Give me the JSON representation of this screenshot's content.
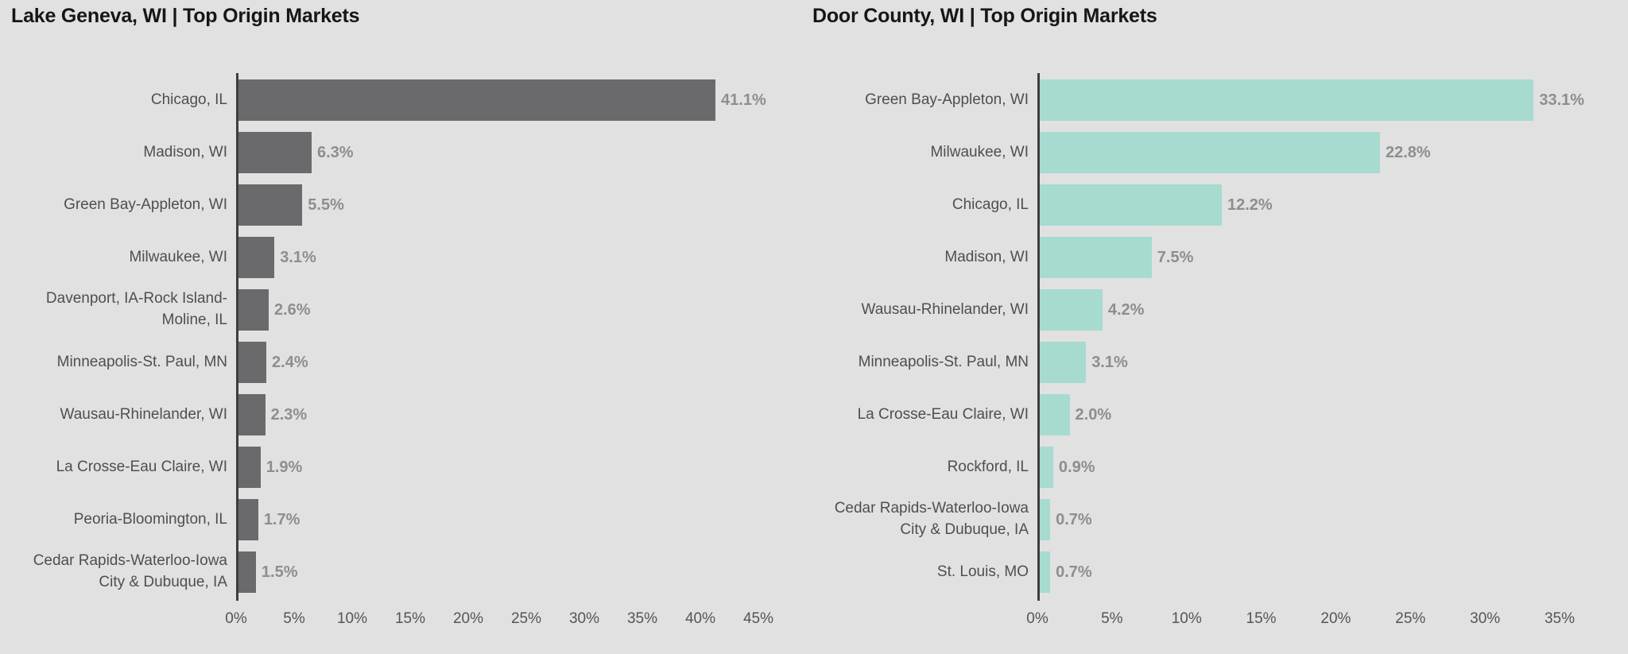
{
  "page": {
    "background": "#e1e1e1"
  },
  "colors": {
    "background": "#e1e1e1",
    "bar_dark_gray": "#6a696b",
    "bar_teal": "#a7dbd0",
    "title_text": "#161616",
    "category_text": "#4f4e52",
    "value_text": "#8e8d90",
    "tick_text": "#555458",
    "axis_line": "#3e3d3f"
  },
  "chart_data": [
    {
      "type": "bar",
      "orientation": "horizontal",
      "title": "Lake Geneva, WI | Top Origin Markets",
      "bar_color": "#6a696b",
      "grid": false,
      "legend": false,
      "xlim": [
        0,
        45
      ],
      "xtick_interval": 5,
      "xtick_labels": [
        "0%",
        "5%",
        "10%",
        "15%",
        "20%",
        "25%",
        "30%",
        "35%",
        "40%",
        "45%"
      ],
      "categories": [
        "Chicago, IL",
        "Madison, WI",
        "Green Bay-Appleton, WI",
        "Milwaukee, WI",
        "Davenport, IA-Rock Island-\nMoline, IL",
        "Minneapolis-St. Paul, MN",
        "Wausau-Rhinelander, WI",
        "La Crosse-Eau Claire, WI",
        "Peoria-Bloomington, IL",
        "Cedar Rapids-Waterloo-Iowa\nCity & Dubuque, IA"
      ],
      "values": [
        41.1,
        6.3,
        5.5,
        3.1,
        2.6,
        2.4,
        2.3,
        1.9,
        1.7,
        1.5
      ],
      "value_labels": [
        "41.1%",
        "6.3%",
        "5.5%",
        "3.1%",
        "2.6%",
        "2.4%",
        "2.3%",
        "1.9%",
        "1.7%",
        "1.5%"
      ]
    },
    {
      "type": "bar",
      "orientation": "horizontal",
      "title": "Door County, WI | Top Origin Markets",
      "bar_color": "#a7dbd0",
      "grid": false,
      "legend": false,
      "xlim": [
        0,
        35
      ],
      "xtick_interval": 5,
      "xtick_labels": [
        "0%",
        "5%",
        "10%",
        "15%",
        "20%",
        "25%",
        "30%",
        "35%"
      ],
      "categories": [
        "Green Bay-Appleton, WI",
        "Milwaukee, WI",
        "Chicago, IL",
        "Madison, WI",
        "Wausau-Rhinelander, WI",
        "Minneapolis-St. Paul, MN",
        "La Crosse-Eau Claire, WI",
        "Rockford, IL",
        "Cedar Rapids-Waterloo-Iowa\nCity & Dubuque, IA",
        "St. Louis, MO"
      ],
      "values": [
        33.1,
        22.8,
        12.2,
        7.5,
        4.2,
        3.1,
        2.0,
        0.9,
        0.7,
        0.7
      ],
      "value_labels": [
        "33.1%",
        "22.8%",
        "12.2%",
        "7.5%",
        "4.2%",
        "3.1%",
        "2.0%",
        "0.9%",
        "0.7%",
        "0.7%"
      ]
    }
  ]
}
